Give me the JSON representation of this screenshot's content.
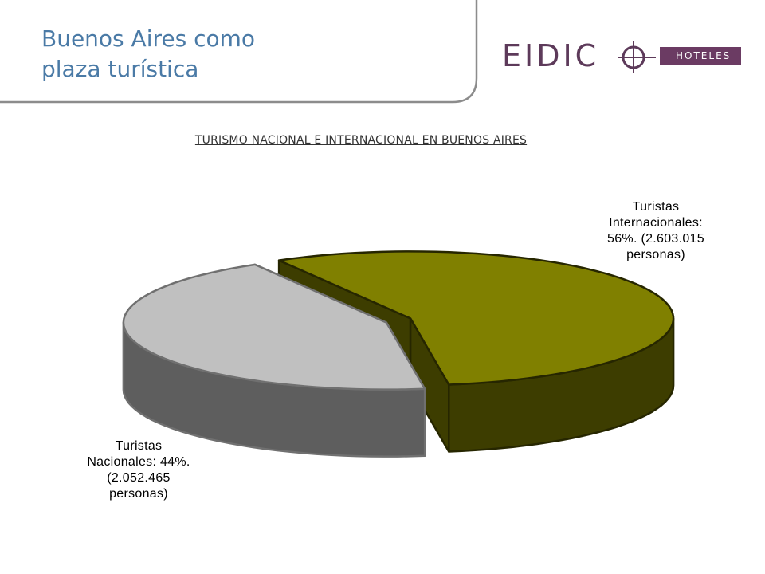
{
  "slide": {
    "title_line1": "Buenos Aires como",
    "title_line2": "plaza turística"
  },
  "logo": {
    "word": "EIDIC",
    "band": "HOTELES"
  },
  "colors": {
    "title": "#4a7aa6",
    "brand": "#6b3b63",
    "slice_internacionales_top": "#808000",
    "slice_internacionales_side": "#3d3d00",
    "slice_nacionales_top": "#c0c0c0",
    "slice_nacionales_side": "#5e5e5e"
  },
  "chart_data": {
    "type": "pie",
    "title": "TURISMO NACIONAL E INTERNACIONAL EN BUENOS AIRES",
    "style": "3d-exploded",
    "slices": [
      {
        "category": "Turistas Internacionales",
        "percent": 56,
        "persons": 2603015,
        "label_lines": [
          "Turistas",
          "Internacionales:",
          "56%. (2.603.015",
          "personas)"
        ]
      },
      {
        "category": "Turistas Nacionales",
        "percent": 44,
        "persons": 2052465,
        "label_lines": [
          "Turistas",
          "Nacionales: 44%.",
          "(2.052.465",
          "personas)"
        ]
      }
    ]
  }
}
